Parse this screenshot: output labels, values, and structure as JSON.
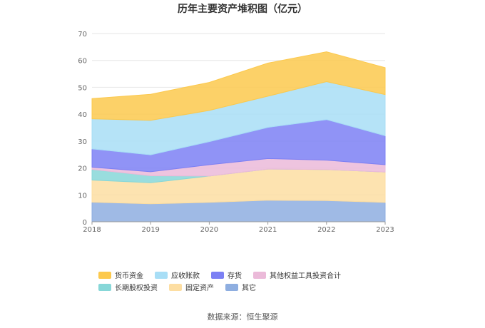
{
  "chart_data": {
    "type": "area",
    "stacked": true,
    "title": "历年主要资产堆积图（亿元）",
    "categories": [
      "2018",
      "2019",
      "2020",
      "2021",
      "2022",
      "2023"
    ],
    "ylim": [
      0,
      70
    ],
    "yticks": [
      0,
      10,
      20,
      30,
      40,
      50,
      60,
      70
    ],
    "grid": true,
    "legend_position": "bottom",
    "series": [
      {
        "name": "其它",
        "color": "#8eaee0",
        "values": [
          7.3,
          6.7,
          7.2,
          8.0,
          7.9,
          7.2
        ]
      },
      {
        "name": "固定资产",
        "color": "#fddea2",
        "values": [
          8.2,
          7.8,
          9.8,
          11.6,
          11.5,
          11.3
        ]
      },
      {
        "name": "长期股权投资",
        "color": "#87d7d8",
        "values": [
          4.0,
          2.6,
          0.0,
          0.0,
          0.0,
          0.0
        ]
      },
      {
        "name": "其他权益工具投资合计",
        "color": "#ebbad9",
        "values": [
          0.8,
          1.5,
          4.2,
          3.9,
          3.5,
          2.7
        ]
      },
      {
        "name": "存货",
        "color": "#7c80f4",
        "values": [
          6.8,
          6.3,
          8.6,
          11.6,
          15.1,
          10.8
        ]
      },
      {
        "name": "应收账款",
        "color": "#a8def6",
        "values": [
          11.2,
          12.8,
          11.6,
          11.6,
          14.1,
          15.3
        ]
      },
      {
        "name": "货币资金",
        "color": "#fcc94d",
        "values": [
          7.5,
          9.7,
          10.4,
          12.3,
          11.1,
          10.0
        ]
      }
    ],
    "legend_order": [
      "货币资金",
      "应收账款",
      "存货",
      "其他权益工具投资合计",
      "长期股权投资",
      "固定资产",
      "其它"
    ]
  },
  "source": "数据来源：恒生聚源"
}
